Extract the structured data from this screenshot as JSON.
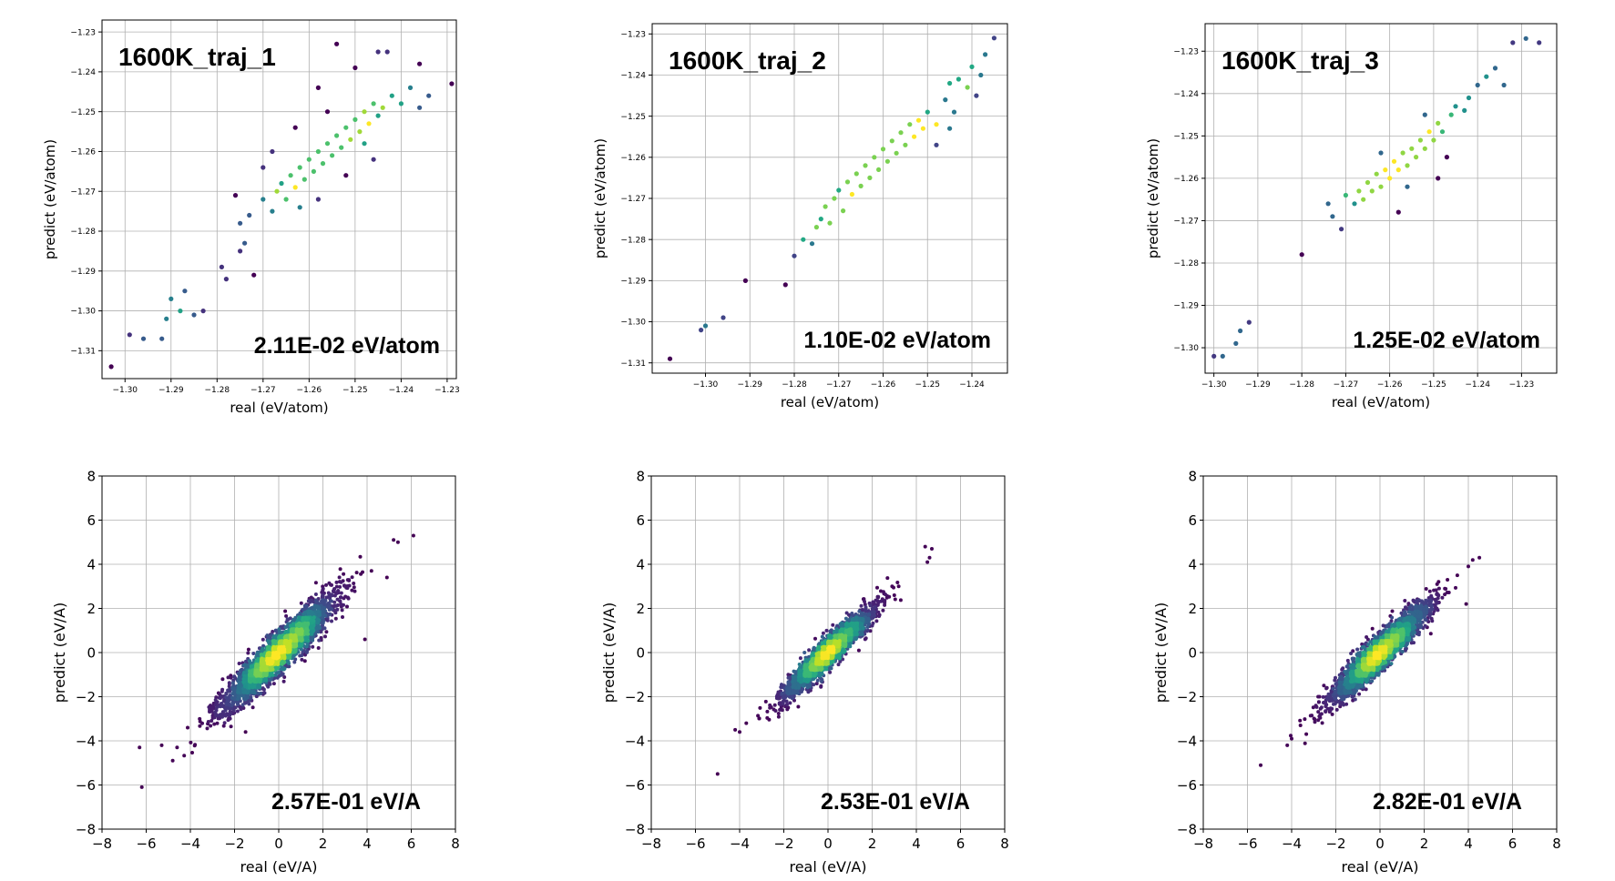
{
  "chart_data": [
    {
      "type": "scatter",
      "title": "1600K_traj_1",
      "annotation": "2.11E-02 eV/atom",
      "xlabel": "real (eV/atom)",
      "ylabel": "predict (eV/atom)",
      "xlim": [
        -1.305,
        -1.228
      ],
      "ylim": [
        -1.317,
        -1.227
      ],
      "xticks": [
        -1.3,
        -1.29,
        -1.28,
        -1.27,
        -1.26,
        -1.25,
        -1.24,
        -1.23
      ],
      "yticks": [
        -1.31,
        -1.3,
        -1.29,
        -1.28,
        -1.27,
        -1.26,
        -1.25,
        -1.24,
        -1.23
      ],
      "tick_labels_x": [
        "−1.30",
        "−1.29",
        "−1.28",
        "−1.27",
        "−1.26",
        "−1.25",
        "−1.24",
        "−1.23"
      ],
      "tick_labels_y": [
        "−1.31",
        "−1.30",
        "−1.29",
        "−1.28",
        "−1.27",
        "−1.26",
        "−1.25",
        "−1.24",
        "−1.23"
      ],
      "grid": true,
      "colormap": "viridis",
      "series": [
        {
          "points": [
            [
              -1.303,
              -1.314
            ],
            [
              -1.299,
              -1.306
            ],
            [
              -1.296,
              -1.307
            ],
            [
              -1.292,
              -1.307
            ],
            [
              -1.291,
              -1.302
            ],
            [
              -1.29,
              -1.297
            ],
            [
              -1.288,
              -1.3
            ],
            [
              -1.287,
              -1.295
            ],
            [
              -1.285,
              -1.301
            ],
            [
              -1.283,
              -1.3
            ],
            [
              -1.279,
              -1.289
            ],
            [
              -1.278,
              -1.292
            ],
            [
              -1.275,
              -1.285
            ],
            [
              -1.274,
              -1.283
            ],
            [
              -1.272,
              -1.291
            ],
            [
              -1.273,
              -1.276
            ],
            [
              -1.27,
              -1.272
            ],
            [
              -1.268,
              -1.275
            ],
            [
              -1.267,
              -1.27
            ],
            [
              -1.266,
              -1.268
            ],
            [
              -1.265,
              -1.272
            ],
            [
              -1.264,
              -1.266
            ],
            [
              -1.263,
              -1.269
            ],
            [
              -1.262,
              -1.264
            ],
            [
              -1.261,
              -1.267
            ],
            [
              -1.26,
              -1.262
            ],
            [
              -1.259,
              -1.265
            ],
            [
              -1.258,
              -1.26
            ],
            [
              -1.257,
              -1.263
            ],
            [
              -1.256,
              -1.258
            ],
            [
              -1.255,
              -1.261
            ],
            [
              -1.254,
              -1.256
            ],
            [
              -1.253,
              -1.259
            ],
            [
              -1.252,
              -1.254
            ],
            [
              -1.251,
              -1.257
            ],
            [
              -1.25,
              -1.252
            ],
            [
              -1.249,
              -1.255
            ],
            [
              -1.248,
              -1.25
            ],
            [
              -1.247,
              -1.253
            ],
            [
              -1.246,
              -1.248
            ],
            [
              -1.245,
              -1.251
            ],
            [
              -1.244,
              -1.249
            ],
            [
              -1.242,
              -1.246
            ],
            [
              -1.24,
              -1.248
            ],
            [
              -1.238,
              -1.244
            ],
            [
              -1.236,
              -1.238
            ],
            [
              -1.234,
              -1.246
            ],
            [
              -1.229,
              -1.243
            ],
            [
              -1.254,
              -1.233
            ],
            [
              -1.25,
              -1.239
            ],
            [
              -1.245,
              -1.235
            ],
            [
              -1.239,
              -1.226
            ],
            [
              -1.243,
              -1.235
            ],
            [
              -1.236,
              -1.249
            ],
            [
              -1.263,
              -1.254
            ],
            [
              -1.268,
              -1.26
            ],
            [
              -1.258,
              -1.272
            ],
            [
              -1.252,
              -1.266
            ],
            [
              -1.246,
              -1.262
            ],
            [
              -1.27,
              -1.264
            ],
            [
              -1.276,
              -1.271
            ],
            [
              -1.275,
              -1.278
            ],
            [
              -1.262,
              -1.274
            ],
            [
              -1.256,
              -1.25
            ],
            [
              -1.248,
              -1.258
            ],
            [
              -1.258,
              -1.244
            ]
          ]
        }
      ]
    },
    {
      "type": "scatter",
      "title": "1600K_traj_2",
      "annotation": "1.10E-02 eV/atom",
      "xlabel": "real (eV/atom)",
      "ylabel": "predict (eV/atom)",
      "xlim": [
        -1.312,
        -1.232
      ],
      "ylim": [
        -1.3125,
        -1.2275
      ],
      "xticks": [
        -1.3,
        -1.29,
        -1.28,
        -1.27,
        -1.26,
        -1.25,
        -1.24
      ],
      "yticks": [
        -1.31,
        -1.3,
        -1.29,
        -1.28,
        -1.27,
        -1.26,
        -1.25,
        -1.24,
        -1.23
      ],
      "tick_labels_x": [
        "−1.30",
        "−1.29",
        "−1.28",
        "−1.27",
        "−1.26",
        "−1.25",
        "−1.24"
      ],
      "tick_labels_y": [
        "−1.31",
        "−1.30",
        "−1.29",
        "−1.28",
        "−1.27",
        "−1.26",
        "−1.25",
        "−1.24",
        "−1.23"
      ],
      "grid": true,
      "colormap": "viridis",
      "series": [
        {
          "points": [
            [
              -1.308,
              -1.309
            ],
            [
              -1.301,
              -1.302
            ],
            [
              -1.3,
              -1.301
            ],
            [
              -1.296,
              -1.299
            ],
            [
              -1.291,
              -1.29
            ],
            [
              -1.282,
              -1.291
            ],
            [
              -1.28,
              -1.284
            ],
            [
              -1.278,
              -1.28
            ],
            [
              -1.276,
              -1.281
            ],
            [
              -1.275,
              -1.277
            ],
            [
              -1.274,
              -1.275
            ],
            [
              -1.273,
              -1.272
            ],
            [
              -1.272,
              -1.276
            ],
            [
              -1.271,
              -1.27
            ],
            [
              -1.27,
              -1.268
            ],
            [
              -1.269,
              -1.273
            ],
            [
              -1.268,
              -1.266
            ],
            [
              -1.267,
              -1.269
            ],
            [
              -1.266,
              -1.264
            ],
            [
              -1.265,
              -1.267
            ],
            [
              -1.264,
              -1.262
            ],
            [
              -1.263,
              -1.265
            ],
            [
              -1.262,
              -1.26
            ],
            [
              -1.261,
              -1.263
            ],
            [
              -1.26,
              -1.258
            ],
            [
              -1.259,
              -1.261
            ],
            [
              -1.258,
              -1.256
            ],
            [
              -1.257,
              -1.259
            ],
            [
              -1.256,
              -1.254
            ],
            [
              -1.255,
              -1.257
            ],
            [
              -1.254,
              -1.252
            ],
            [
              -1.253,
              -1.255
            ],
            [
              -1.252,
              -1.251
            ],
            [
              -1.251,
              -1.253
            ],
            [
              -1.25,
              -1.249
            ],
            [
              -1.248,
              -1.252
            ],
            [
              -1.246,
              -1.246
            ],
            [
              -1.244,
              -1.249
            ],
            [
              -1.243,
              -1.241
            ],
            [
              -1.241,
              -1.243
            ],
            [
              -1.24,
              -1.238
            ],
            [
              -1.238,
              -1.24
            ],
            [
              -1.237,
              -1.235
            ],
            [
              -1.235,
              -1.231
            ],
            [
              -1.239,
              -1.245
            ],
            [
              -1.245,
              -1.253
            ],
            [
              -1.248,
              -1.257
            ],
            [
              -1.245,
              -1.242
            ]
          ]
        }
      ]
    },
    {
      "type": "scatter",
      "title": "1600K_traj_3",
      "annotation": "1.25E-02 eV/atom",
      "xlabel": "real (eV/atom)",
      "ylabel": "predict (eV/atom)",
      "xlim": [
        -1.302,
        -1.222
      ],
      "ylim": [
        -1.306,
        -1.2235
      ],
      "xticks": [
        -1.3,
        -1.29,
        -1.28,
        -1.27,
        -1.26,
        -1.25,
        -1.24,
        -1.23
      ],
      "yticks": [
        -1.3,
        -1.29,
        -1.28,
        -1.27,
        -1.26,
        -1.25,
        -1.24,
        -1.23
      ],
      "tick_labels_x": [
        "−1.30",
        "−1.29",
        "−1.28",
        "−1.27",
        "−1.26",
        "−1.25",
        "−1.24",
        "−1.23"
      ],
      "tick_labels_y": [
        "−1.30",
        "−1.29",
        "−1.28",
        "−1.27",
        "−1.26",
        "−1.25",
        "−1.24",
        "−1.23"
      ],
      "grid": true,
      "colormap": "viridis",
      "series": [
        {
          "points": [
            [
              -1.3,
              -1.302
            ],
            [
              -1.298,
              -1.302
            ],
            [
              -1.295,
              -1.299
            ],
            [
              -1.294,
              -1.296
            ],
            [
              -1.292,
              -1.294
            ],
            [
              -1.28,
              -1.278
            ],
            [
              -1.274,
              -1.266
            ],
            [
              -1.273,
              -1.269
            ],
            [
              -1.271,
              -1.272
            ],
            [
              -1.27,
              -1.264
            ],
            [
              -1.268,
              -1.266
            ],
            [
              -1.267,
              -1.263
            ],
            [
              -1.266,
              -1.265
            ],
            [
              -1.265,
              -1.261
            ],
            [
              -1.264,
              -1.263
            ],
            [
              -1.263,
              -1.259
            ],
            [
              -1.262,
              -1.262
            ],
            [
              -1.261,
              -1.258
            ],
            [
              -1.26,
              -1.26
            ],
            [
              -1.259,
              -1.256
            ],
            [
              -1.258,
              -1.258
            ],
            [
              -1.257,
              -1.254
            ],
            [
              -1.256,
              -1.257
            ],
            [
              -1.255,
              -1.253
            ],
            [
              -1.254,
              -1.255
            ],
            [
              -1.253,
              -1.251
            ],
            [
              -1.252,
              -1.253
            ],
            [
              -1.251,
              -1.249
            ],
            [
              -1.25,
              -1.251
            ],
            [
              -1.249,
              -1.247
            ],
            [
              -1.248,
              -1.249
            ],
            [
              -1.246,
              -1.245
            ],
            [
              -1.245,
              -1.243
            ],
            [
              -1.243,
              -1.244
            ],
            [
              -1.242,
              -1.241
            ],
            [
              -1.24,
              -1.238
            ],
            [
              -1.238,
              -1.236
            ],
            [
              -1.236,
              -1.234
            ],
            [
              -1.234,
              -1.238
            ],
            [
              -1.232,
              -1.228
            ],
            [
              -1.229,
              -1.227
            ],
            [
              -1.226,
              -1.228
            ],
            [
              -1.247,
              -1.255
            ],
            [
              -1.249,
              -1.26
            ],
            [
              -1.258,
              -1.268
            ],
            [
              -1.262,
              -1.254
            ],
            [
              -1.256,
              -1.262
            ],
            [
              -1.252,
              -1.245
            ]
          ]
        }
      ]
    },
    {
      "type": "scatter",
      "title": "",
      "annotation": "2.57E-01 eV/A",
      "xlabel": "real (eV/A)",
      "ylabel": "predict (eV/A)",
      "xlim": [
        -8,
        8
      ],
      "ylim": [
        -8,
        8
      ],
      "xticks": [
        -8,
        -6,
        -4,
        -2,
        0,
        2,
        4,
        6,
        8
      ],
      "yticks": [
        -8,
        -6,
        -4,
        -2,
        0,
        2,
        4,
        6,
        8
      ],
      "tick_labels_x": [
        "−8",
        "−6",
        "−4",
        "−2",
        "0",
        "2",
        "4",
        "6",
        "8"
      ],
      "tick_labels_y": [
        "−8",
        "−6",
        "−4",
        "−2",
        "0",
        "2",
        "4",
        "6",
        "8"
      ],
      "grid": true,
      "colormap": "viridis",
      "density": {
        "count": 3200,
        "spread_along": 1.7,
        "spread_across": 0.32,
        "tail_points": [
          [
            -6.2,
            -6.1
          ],
          [
            -6.3,
            -4.3
          ],
          [
            -5.3,
            -4.2
          ],
          [
            -4.8,
            -4.9
          ],
          [
            -4.6,
            -4.3
          ],
          [
            5.2,
            5.1
          ],
          [
            6.1,
            5.3
          ],
          [
            5.4,
            5.0
          ],
          [
            4.2,
            3.7
          ],
          [
            3.9,
            0.6
          ],
          [
            4.9,
            3.4
          ],
          [
            -1.5,
            -3.6
          ]
        ]
      }
    },
    {
      "type": "scatter",
      "title": "",
      "annotation": "2.53E-01 eV/A",
      "xlabel": "real (eV/A)",
      "ylabel": "predict (eV/A)",
      "xlim": [
        -8,
        8
      ],
      "ylim": [
        -8,
        8
      ],
      "xticks": [
        -8,
        -6,
        -4,
        -2,
        0,
        2,
        4,
        6,
        8
      ],
      "yticks": [
        -8,
        -6,
        -4,
        -2,
        0,
        2,
        4,
        6,
        8
      ],
      "tick_labels_x": [
        "−8",
        "−6",
        "−4",
        "−2",
        "0",
        "2",
        "4",
        "6",
        "8"
      ],
      "tick_labels_y": [
        "−8",
        "−6",
        "−4",
        "−2",
        "0",
        "2",
        "4",
        "6",
        "8"
      ],
      "grid": true,
      "colormap": "viridis",
      "density": {
        "count": 2600,
        "spread_along": 1.35,
        "spread_across": 0.24,
        "tail_points": [
          [
            -5.0,
            -5.5
          ],
          [
            -4.2,
            -3.5
          ],
          [
            -4.0,
            -3.6
          ],
          [
            -3.7,
            -3.2
          ],
          [
            4.4,
            4.8
          ],
          [
            4.7,
            4.7
          ],
          [
            4.6,
            4.3
          ],
          [
            4.5,
            4.1
          ],
          [
            3.2,
            3.0
          ],
          [
            3.0,
            2.6
          ]
        ]
      }
    },
    {
      "type": "scatter",
      "title": "",
      "annotation": "2.82E-01 eV/A",
      "xlabel": "real (eV/A)",
      "ylabel": "predict (eV/A)",
      "xlim": [
        -8,
        8
      ],
      "ylim": [
        -8,
        8
      ],
      "xticks": [
        -8,
        -6,
        -4,
        -2,
        0,
        2,
        4,
        6,
        8
      ],
      "yticks": [
        -8,
        -6,
        -4,
        -2,
        0,
        2,
        4,
        6,
        8
      ],
      "tick_labels_x": [
        "−8",
        "−6",
        "−4",
        "−2",
        "0",
        "2",
        "4",
        "6",
        "8"
      ],
      "tick_labels_y": [
        "−8",
        "−6",
        "−4",
        "−2",
        "0",
        "2",
        "4",
        "6",
        "8"
      ],
      "grid": true,
      "colormap": "viridis",
      "density": {
        "count": 2800,
        "spread_along": 1.45,
        "spread_across": 0.28,
        "tail_points": [
          [
            -5.4,
            -5.1
          ],
          [
            -4.2,
            -4.2
          ],
          [
            -4.0,
            -3.9
          ],
          [
            -3.6,
            -3.3
          ],
          [
            4.2,
            4.2
          ],
          [
            4.5,
            4.3
          ],
          [
            4.0,
            3.9
          ],
          [
            3.9,
            2.2
          ],
          [
            3.5,
            3.5
          ],
          [
            -2.8,
            -2.0
          ]
        ]
      }
    }
  ]
}
